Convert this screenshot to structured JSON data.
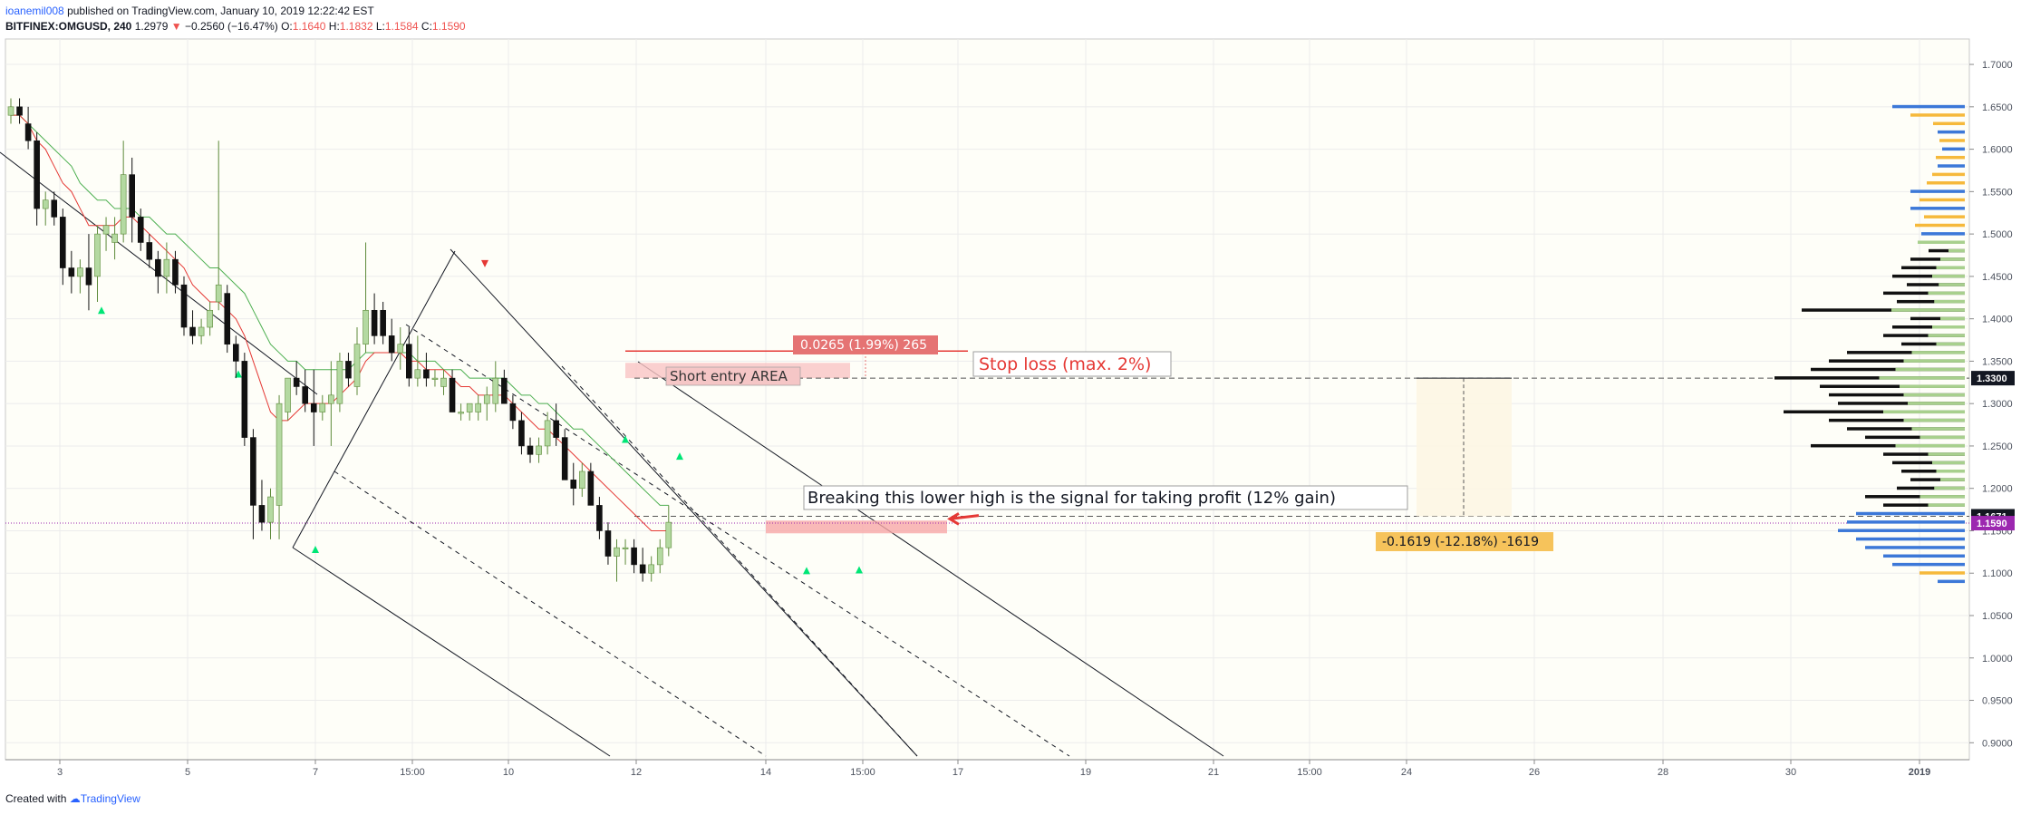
{
  "header": {
    "author": "ioanemil008",
    "published": "published on TradingView.com, January 10, 2019 12:22:42 EST",
    "symbol": "BITFINEX:OMGUSD, 240",
    "last": "1.2979",
    "change": "−0.2560 (−16.47%)",
    "o_label": "O:",
    "o": "1.1640",
    "h_label": "H:",
    "h": "1.1832",
    "l_label": "L:",
    "l": "1.1584",
    "c_label": "C:",
    "c": "1.1590"
  },
  "footer": {
    "created_with": "Created with",
    "brand": "TradingView"
  },
  "colors": {
    "up": "#b4d9a1",
    "down": "#111111",
    "red": "#e53935",
    "green": "#4caf50",
    "price": "#9c27b0",
    "vol_blue": "#3c78d8",
    "vol_orange": "#f6b93b",
    "vol_green": "#a8d08d"
  },
  "annotations": {
    "short_entry": "Short entry AREA",
    "stop_loss": "Stop loss (max. 2%)",
    "measure_top": "0.0265 (1.99%) 265",
    "breaking": "Breaking this lower high is the signal for taking profit (12% gain)",
    "measure_bottom": "-0.1619 (-12.18%) -1619"
  },
  "chart_data": {
    "type": "candlestick",
    "ylim": [
      0.88,
      1.73
    ],
    "y_ticks": [
      "1.7000",
      "1.6500",
      "1.6000",
      "1.5500",
      "1.5000",
      "1.4500",
      "1.4000",
      "1.3500",
      "1.3000",
      "1.2500",
      "1.2000",
      "1.1500",
      "1.1000",
      "1.0500",
      "1.0000",
      "0.9500",
      "0.9000"
    ],
    "x_ticks": [
      "3",
      "5",
      "7",
      "15:00",
      "10",
      "12",
      "14",
      "15:00",
      "17",
      "19",
      "21",
      "15:00",
      "24",
      "26",
      "28",
      "30",
      "2019"
    ],
    "price_labels": [
      {
        "value": 1.33,
        "text": "1.3300",
        "bg": "#131722"
      },
      {
        "value": 1.1671,
        "text": "1.1671",
        "bg": "#131722"
      },
      {
        "value": 1.159,
        "text": "1.1590",
        "bg": "#9c27b0"
      }
    ],
    "candles": [
      [
        1.64,
        1.66,
        1.63,
        1.65
      ],
      [
        1.65,
        1.66,
        1.63,
        1.64
      ],
      [
        1.63,
        1.65,
        1.6,
        1.61
      ],
      [
        1.61,
        1.62,
        1.51,
        1.53
      ],
      [
        1.53,
        1.55,
        1.51,
        1.54
      ],
      [
        1.54,
        1.55,
        1.51,
        1.52
      ],
      [
        1.52,
        1.53,
        1.44,
        1.46
      ],
      [
        1.46,
        1.48,
        1.43,
        1.45
      ],
      [
        1.45,
        1.47,
        1.43,
        1.46
      ],
      [
        1.46,
        1.5,
        1.41,
        1.44
      ],
      [
        1.45,
        1.51,
        1.42,
        1.5
      ],
      [
        1.5,
        1.52,
        1.48,
        1.51
      ],
      [
        1.49,
        1.52,
        1.47,
        1.5
      ],
      [
        1.5,
        1.61,
        1.49,
        1.57
      ],
      [
        1.57,
        1.59,
        1.49,
        1.52
      ],
      [
        1.52,
        1.53,
        1.48,
        1.49
      ],
      [
        1.49,
        1.5,
        1.46,
        1.47
      ],
      [
        1.47,
        1.48,
        1.43,
        1.45
      ],
      [
        1.45,
        1.49,
        1.43,
        1.47
      ],
      [
        1.47,
        1.48,
        1.43,
        1.44
      ],
      [
        1.44,
        1.45,
        1.38,
        1.39
      ],
      [
        1.39,
        1.41,
        1.37,
        1.38
      ],
      [
        1.38,
        1.4,
        1.37,
        1.39
      ],
      [
        1.39,
        1.42,
        1.38,
        1.41
      ],
      [
        1.42,
        1.61,
        1.41,
        1.44
      ],
      [
        1.43,
        1.44,
        1.36,
        1.37
      ],
      [
        1.37,
        1.38,
        1.33,
        1.35
      ],
      [
        1.35,
        1.36,
        1.25,
        1.26
      ],
      [
        1.26,
        1.27,
        1.14,
        1.18
      ],
      [
        1.18,
        1.21,
        1.15,
        1.16
      ],
      [
        1.16,
        1.2,
        1.14,
        1.19
      ],
      [
        1.18,
        1.31,
        1.14,
        1.3
      ],
      [
        1.29,
        1.33,
        1.28,
        1.33
      ],
      [
        1.33,
        1.35,
        1.31,
        1.32
      ],
      [
        1.32,
        1.34,
        1.29,
        1.3
      ],
      [
        1.3,
        1.34,
        1.25,
        1.29
      ],
      [
        1.29,
        1.31,
        1.28,
        1.3
      ],
      [
        1.3,
        1.35,
        1.25,
        1.31
      ],
      [
        1.3,
        1.36,
        1.29,
        1.35
      ],
      [
        1.35,
        1.36,
        1.32,
        1.33
      ],
      [
        1.32,
        1.39,
        1.31,
        1.37
      ],
      [
        1.37,
        1.49,
        1.36,
        1.41
      ],
      [
        1.41,
        1.43,
        1.37,
        1.38
      ],
      [
        1.41,
        1.42,
        1.37,
        1.38
      ],
      [
        1.38,
        1.4,
        1.35,
        1.36
      ],
      [
        1.36,
        1.39,
        1.34,
        1.37
      ],
      [
        1.37,
        1.39,
        1.32,
        1.33
      ],
      [
        1.33,
        1.38,
        1.32,
        1.34
      ],
      [
        1.34,
        1.36,
        1.32,
        1.33
      ],
      [
        1.33,
        1.34,
        1.32,
        1.33
      ],
      [
        1.32,
        1.34,
        1.31,
        1.33
      ],
      [
        1.33,
        1.34,
        1.29,
        1.29
      ],
      [
        1.29,
        1.3,
        1.28,
        1.29
      ],
      [
        1.29,
        1.3,
        1.28,
        1.3
      ],
      [
        1.29,
        1.31,
        1.28,
        1.3
      ],
      [
        1.3,
        1.32,
        1.28,
        1.31
      ],
      [
        1.3,
        1.35,
        1.29,
        1.33
      ],
      [
        1.33,
        1.34,
        1.3,
        1.3
      ],
      [
        1.3,
        1.31,
        1.27,
        1.28
      ],
      [
        1.28,
        1.29,
        1.24,
        1.25
      ],
      [
        1.25,
        1.26,
        1.23,
        1.24
      ],
      [
        1.24,
        1.26,
        1.23,
        1.25
      ],
      [
        1.25,
        1.29,
        1.24,
        1.28
      ],
      [
        1.28,
        1.3,
        1.25,
        1.26
      ],
      [
        1.26,
        1.27,
        1.21,
        1.21
      ],
      [
        1.21,
        1.23,
        1.18,
        1.2
      ],
      [
        1.2,
        1.23,
        1.19,
        1.22
      ],
      [
        1.22,
        1.23,
        1.18,
        1.18
      ],
      [
        1.18,
        1.19,
        1.14,
        1.15
      ],
      [
        1.15,
        1.16,
        1.11,
        1.12
      ],
      [
        1.12,
        1.14,
        1.09,
        1.13
      ],
      [
        1.13,
        1.14,
        1.11,
        1.13
      ],
      [
        1.13,
        1.14,
        1.1,
        1.11
      ],
      [
        1.11,
        1.13,
        1.09,
        1.1
      ],
      [
        1.1,
        1.12,
        1.09,
        1.11
      ],
      [
        1.11,
        1.14,
        1.1,
        1.13
      ],
      [
        1.13,
        1.18,
        1.12,
        1.16
      ]
    ],
    "ema_fast": [
      1.64,
      1.64,
      1.63,
      1.61,
      1.6,
      1.58,
      1.56,
      1.55,
      1.53,
      1.51,
      1.51,
      1.51,
      1.51,
      1.52,
      1.52,
      1.51,
      1.5,
      1.49,
      1.48,
      1.47,
      1.46,
      1.44,
      1.43,
      1.42,
      1.42,
      1.41,
      1.4,
      1.38,
      1.35,
      1.32,
      1.29,
      1.28,
      1.28,
      1.29,
      1.3,
      1.3,
      1.3,
      1.3,
      1.31,
      1.32,
      1.33,
      1.35,
      1.36,
      1.36,
      1.36,
      1.36,
      1.35,
      1.35,
      1.34,
      1.34,
      1.34,
      1.33,
      1.32,
      1.32,
      1.31,
      1.31,
      1.31,
      1.31,
      1.3,
      1.29,
      1.28,
      1.27,
      1.27,
      1.26,
      1.25,
      1.24,
      1.23,
      1.22,
      1.21,
      1.2,
      1.19,
      1.18,
      1.17,
      1.16,
      1.15,
      1.15,
      1.15
    ],
    "ema_slow": [
      1.64,
      1.64,
      1.63,
      1.62,
      1.61,
      1.6,
      1.59,
      1.58,
      1.56,
      1.55,
      1.54,
      1.54,
      1.53,
      1.53,
      1.53,
      1.52,
      1.52,
      1.51,
      1.5,
      1.5,
      1.49,
      1.48,
      1.47,
      1.46,
      1.46,
      1.45,
      1.44,
      1.43,
      1.41,
      1.39,
      1.37,
      1.36,
      1.35,
      1.35,
      1.34,
      1.34,
      1.34,
      1.34,
      1.34,
      1.34,
      1.35,
      1.36,
      1.36,
      1.36,
      1.36,
      1.36,
      1.36,
      1.35,
      1.35,
      1.35,
      1.34,
      1.34,
      1.34,
      1.33,
      1.33,
      1.33,
      1.33,
      1.33,
      1.32,
      1.31,
      1.31,
      1.3,
      1.3,
      1.29,
      1.28,
      1.27,
      1.27,
      1.26,
      1.25,
      1.24,
      1.23,
      1.22,
      1.21,
      1.2,
      1.19,
      1.18,
      1.18
    ],
    "volume_profile": [
      {
        "p": 1.65,
        "len": 80,
        "c": "blue"
      },
      {
        "p": 1.64,
        "len": 60,
        "c": "orange"
      },
      {
        "p": 1.63,
        "len": 35,
        "c": "orange"
      },
      {
        "p": 1.62,
        "len": 30,
        "c": "blue"
      },
      {
        "p": 1.61,
        "len": 28,
        "c": "orange"
      },
      {
        "p": 1.6,
        "len": 25,
        "c": "blue"
      },
      {
        "p": 1.59,
        "len": 32,
        "c": "orange"
      },
      {
        "p": 1.58,
        "len": 30,
        "c": "blue"
      },
      {
        "p": 1.57,
        "len": 36,
        "c": "orange"
      },
      {
        "p": 1.56,
        "len": 42,
        "c": "orange"
      },
      {
        "p": 1.55,
        "len": 60,
        "c": "blue"
      },
      {
        "p": 1.54,
        "len": 50,
        "c": "orange"
      },
      {
        "p": 1.53,
        "len": 60,
        "c": "blue"
      },
      {
        "p": 1.52,
        "len": 45,
        "c": "orange"
      },
      {
        "p": 1.51,
        "len": 55,
        "c": "orange"
      },
      {
        "p": 1.5,
        "len": 48,
        "c": "blue"
      },
      {
        "p": 1.49,
        "len": 52,
        "c": "green"
      },
      {
        "p": 1.48,
        "len": 40,
        "c": "black"
      },
      {
        "p": 1.47,
        "len": 60,
        "c": "black"
      },
      {
        "p": 1.46,
        "len": 70,
        "c": "black"
      },
      {
        "p": 1.45,
        "len": 80,
        "c": "black"
      },
      {
        "p": 1.44,
        "len": 64,
        "c": "black"
      },
      {
        "p": 1.43,
        "len": 90,
        "c": "black"
      },
      {
        "p": 1.42,
        "len": 75,
        "c": "black"
      },
      {
        "p": 1.41,
        "len": 180,
        "c": "black"
      },
      {
        "p": 1.4,
        "len": 60,
        "c": "black"
      },
      {
        "p": 1.39,
        "len": 80,
        "c": "black"
      },
      {
        "p": 1.38,
        "len": 90,
        "c": "black"
      },
      {
        "p": 1.37,
        "len": 70,
        "c": "black"
      },
      {
        "p": 1.36,
        "len": 130,
        "c": "black"
      },
      {
        "p": 1.35,
        "len": 150,
        "c": "black"
      },
      {
        "p": 1.34,
        "len": 170,
        "c": "black"
      },
      {
        "p": 1.33,
        "len": 210,
        "c": "black"
      },
      {
        "p": 1.32,
        "len": 160,
        "c": "black"
      },
      {
        "p": 1.31,
        "len": 150,
        "c": "black"
      },
      {
        "p": 1.3,
        "len": 140,
        "c": "black"
      },
      {
        "p": 1.29,
        "len": 200,
        "c": "black"
      },
      {
        "p": 1.28,
        "len": 150,
        "c": "black"
      },
      {
        "p": 1.27,
        "len": 130,
        "c": "black"
      },
      {
        "p": 1.26,
        "len": 110,
        "c": "black"
      },
      {
        "p": 1.25,
        "len": 170,
        "c": "black"
      },
      {
        "p": 1.24,
        "len": 90,
        "c": "black"
      },
      {
        "p": 1.23,
        "len": 80,
        "c": "black"
      },
      {
        "p": 1.22,
        "len": 70,
        "c": "black"
      },
      {
        "p": 1.21,
        "len": 60,
        "c": "black"
      },
      {
        "p": 1.2,
        "len": 75,
        "c": "black"
      },
      {
        "p": 1.19,
        "len": 110,
        "c": "black"
      },
      {
        "p": 1.18,
        "len": 90,
        "c": "black"
      },
      {
        "p": 1.17,
        "len": 120,
        "c": "blue"
      },
      {
        "p": 1.16,
        "len": 130,
        "c": "blue"
      },
      {
        "p": 1.15,
        "len": 140,
        "c": "blue"
      },
      {
        "p": 1.14,
        "len": 120,
        "c": "blue"
      },
      {
        "p": 1.13,
        "len": 110,
        "c": "blue"
      },
      {
        "p": 1.12,
        "len": 90,
        "c": "blue"
      },
      {
        "p": 1.11,
        "len": 80,
        "c": "blue"
      },
      {
        "p": 1.1,
        "len": 50,
        "c": "orange"
      },
      {
        "p": 1.09,
        "len": 30,
        "c": "blue"
      }
    ]
  }
}
